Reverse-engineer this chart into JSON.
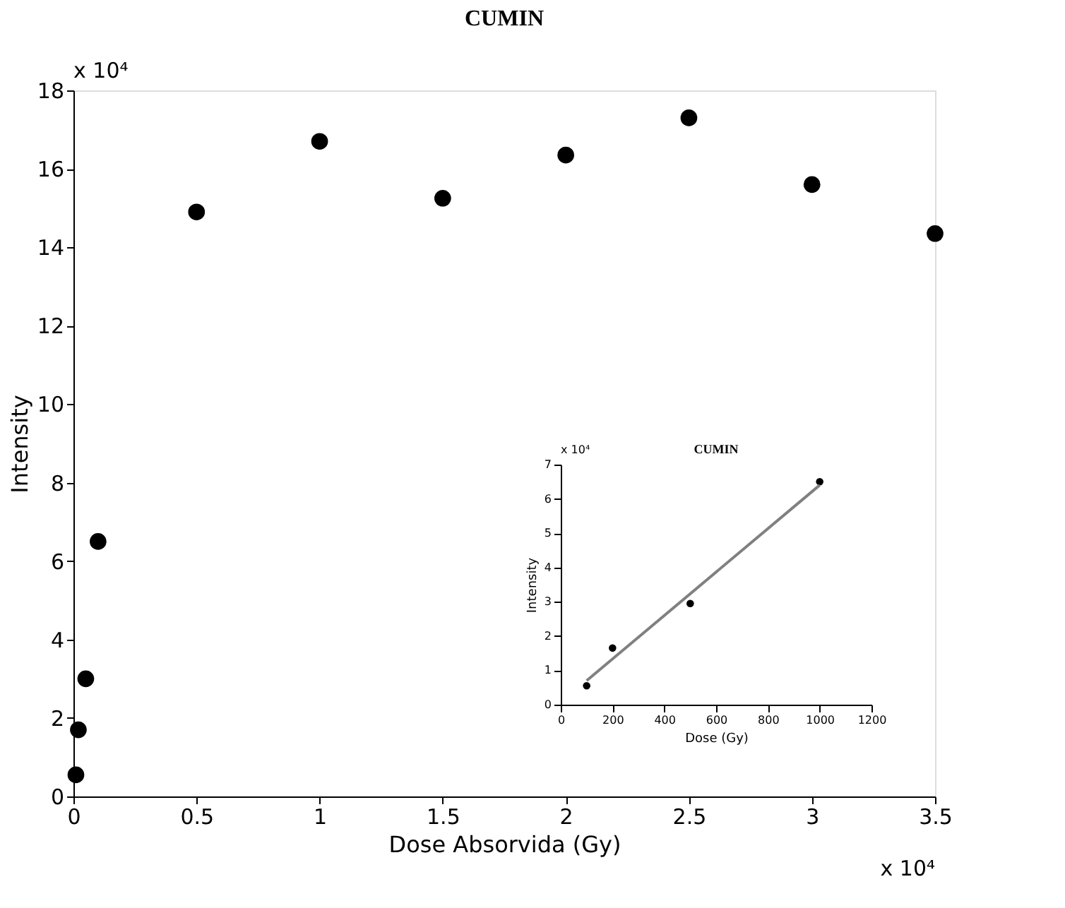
{
  "chart_data": [
    {
      "type": "scatter",
      "title": "CUMIN",
      "xlabel": "Dose Absorvida (Gy)",
      "ylabel": "Intensity",
      "marker": "circle",
      "grid": false,
      "x": [
        0.01,
        0.02,
        0.05,
        0.1,
        0.5,
        1,
        1.5,
        2,
        2.5,
        3,
        3.5
      ],
      "series": [
        {
          "color": "#000000",
          "values": [
            0.55,
            1.7,
            3.0,
            6.5,
            14.9,
            16.7,
            15.25,
            16.35,
            17.3,
            15.6,
            14.35
          ]
        }
      ],
      "xlim": [
        0,
        3.5
      ],
      "xticks": [
        0,
        0.5,
        1,
        1.5,
        2,
        2.5,
        3,
        3.5
      ],
      "ylim": [
        0,
        18
      ],
      "yticks": [
        0,
        2,
        4,
        6,
        8,
        10,
        12,
        14,
        16,
        18
      ],
      "annotations": [
        "x 10⁴",
        "x 10⁴"
      ]
    },
    {
      "type": "scatter",
      "title": "CUMIN",
      "xlabel": "Dose  (Gy)",
      "ylabel": "Intensity",
      "marker": "circle",
      "grid": false,
      "x": [
        100,
        200,
        500,
        1000
      ],
      "series": [
        {
          "color": "#000000",
          "values": [
            0.55,
            1.65,
            2.95,
            6.5
          ]
        },
        {
          "type": "line",
          "color": "#808080",
          "marker": "none",
          "line_style": "solid",
          "x": [
            100,
            1000
          ],
          "values": [
            0.7,
            6.4
          ]
        }
      ],
      "xlim": [
        0,
        1200
      ],
      "xticks": [
        0,
        200,
        400,
        600,
        800,
        1000,
        1200
      ],
      "ylim": [
        0,
        7
      ],
      "yticks": [
        0,
        1,
        2,
        3,
        4,
        5,
        6,
        7
      ],
      "annotations": [
        "x 10⁴"
      ]
    }
  ]
}
